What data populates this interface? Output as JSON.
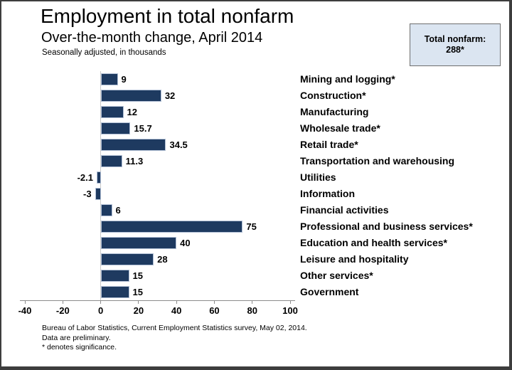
{
  "header": {
    "title": "Employment in total nonfarm",
    "subtitle": "Over-the-month change, April 2014",
    "note": "Seasonally adjusted, in thousands"
  },
  "summary_box": {
    "label": "Total nonfarm:",
    "value": "288*"
  },
  "chart_data": {
    "type": "bar",
    "orientation": "horizontal",
    "title": "Employment in total nonfarm",
    "subtitle": "Over-the-month change, April 2014",
    "units_note": "Seasonally adjusted, in thousands",
    "categories": [
      "Mining and logging*",
      "Construction*",
      "Manufacturing",
      "Wholesale trade*",
      "Retail trade*",
      "Transportation and warehousing",
      "Utilities",
      "Information",
      "Financial activities",
      "Professional and business services*",
      "Education and health services*",
      "Leisure and hospitality",
      "Other services*",
      "Government"
    ],
    "values": [
      9,
      32,
      12,
      15.7,
      34.5,
      11.3,
      -2.1,
      -3,
      6,
      75,
      40,
      28,
      15,
      15
    ],
    "value_labels": [
      "9",
      "32",
      "12",
      "15.7",
      "34.5",
      "11.3",
      "-2.1",
      "-3",
      "6",
      "75",
      "40",
      "28",
      "15",
      "15"
    ],
    "xlim": [
      -40,
      100
    ],
    "x_ticks": [
      -40,
      -20,
      0,
      20,
      40,
      60,
      80,
      100
    ],
    "legend": "none",
    "grid": "zero-line-only",
    "bar_color": "#1e3a60",
    "bar_border_color": "#b3c1d6",
    "zero_line_color": "#c9c9c9",
    "axis_color": "#8c8c8c"
  },
  "footnotes": [
    "Bureau of Labor Statistics, Current Employment Statistics survey, May 02, 2014.",
    "Data are preliminary.",
    "* denotes significance."
  ]
}
